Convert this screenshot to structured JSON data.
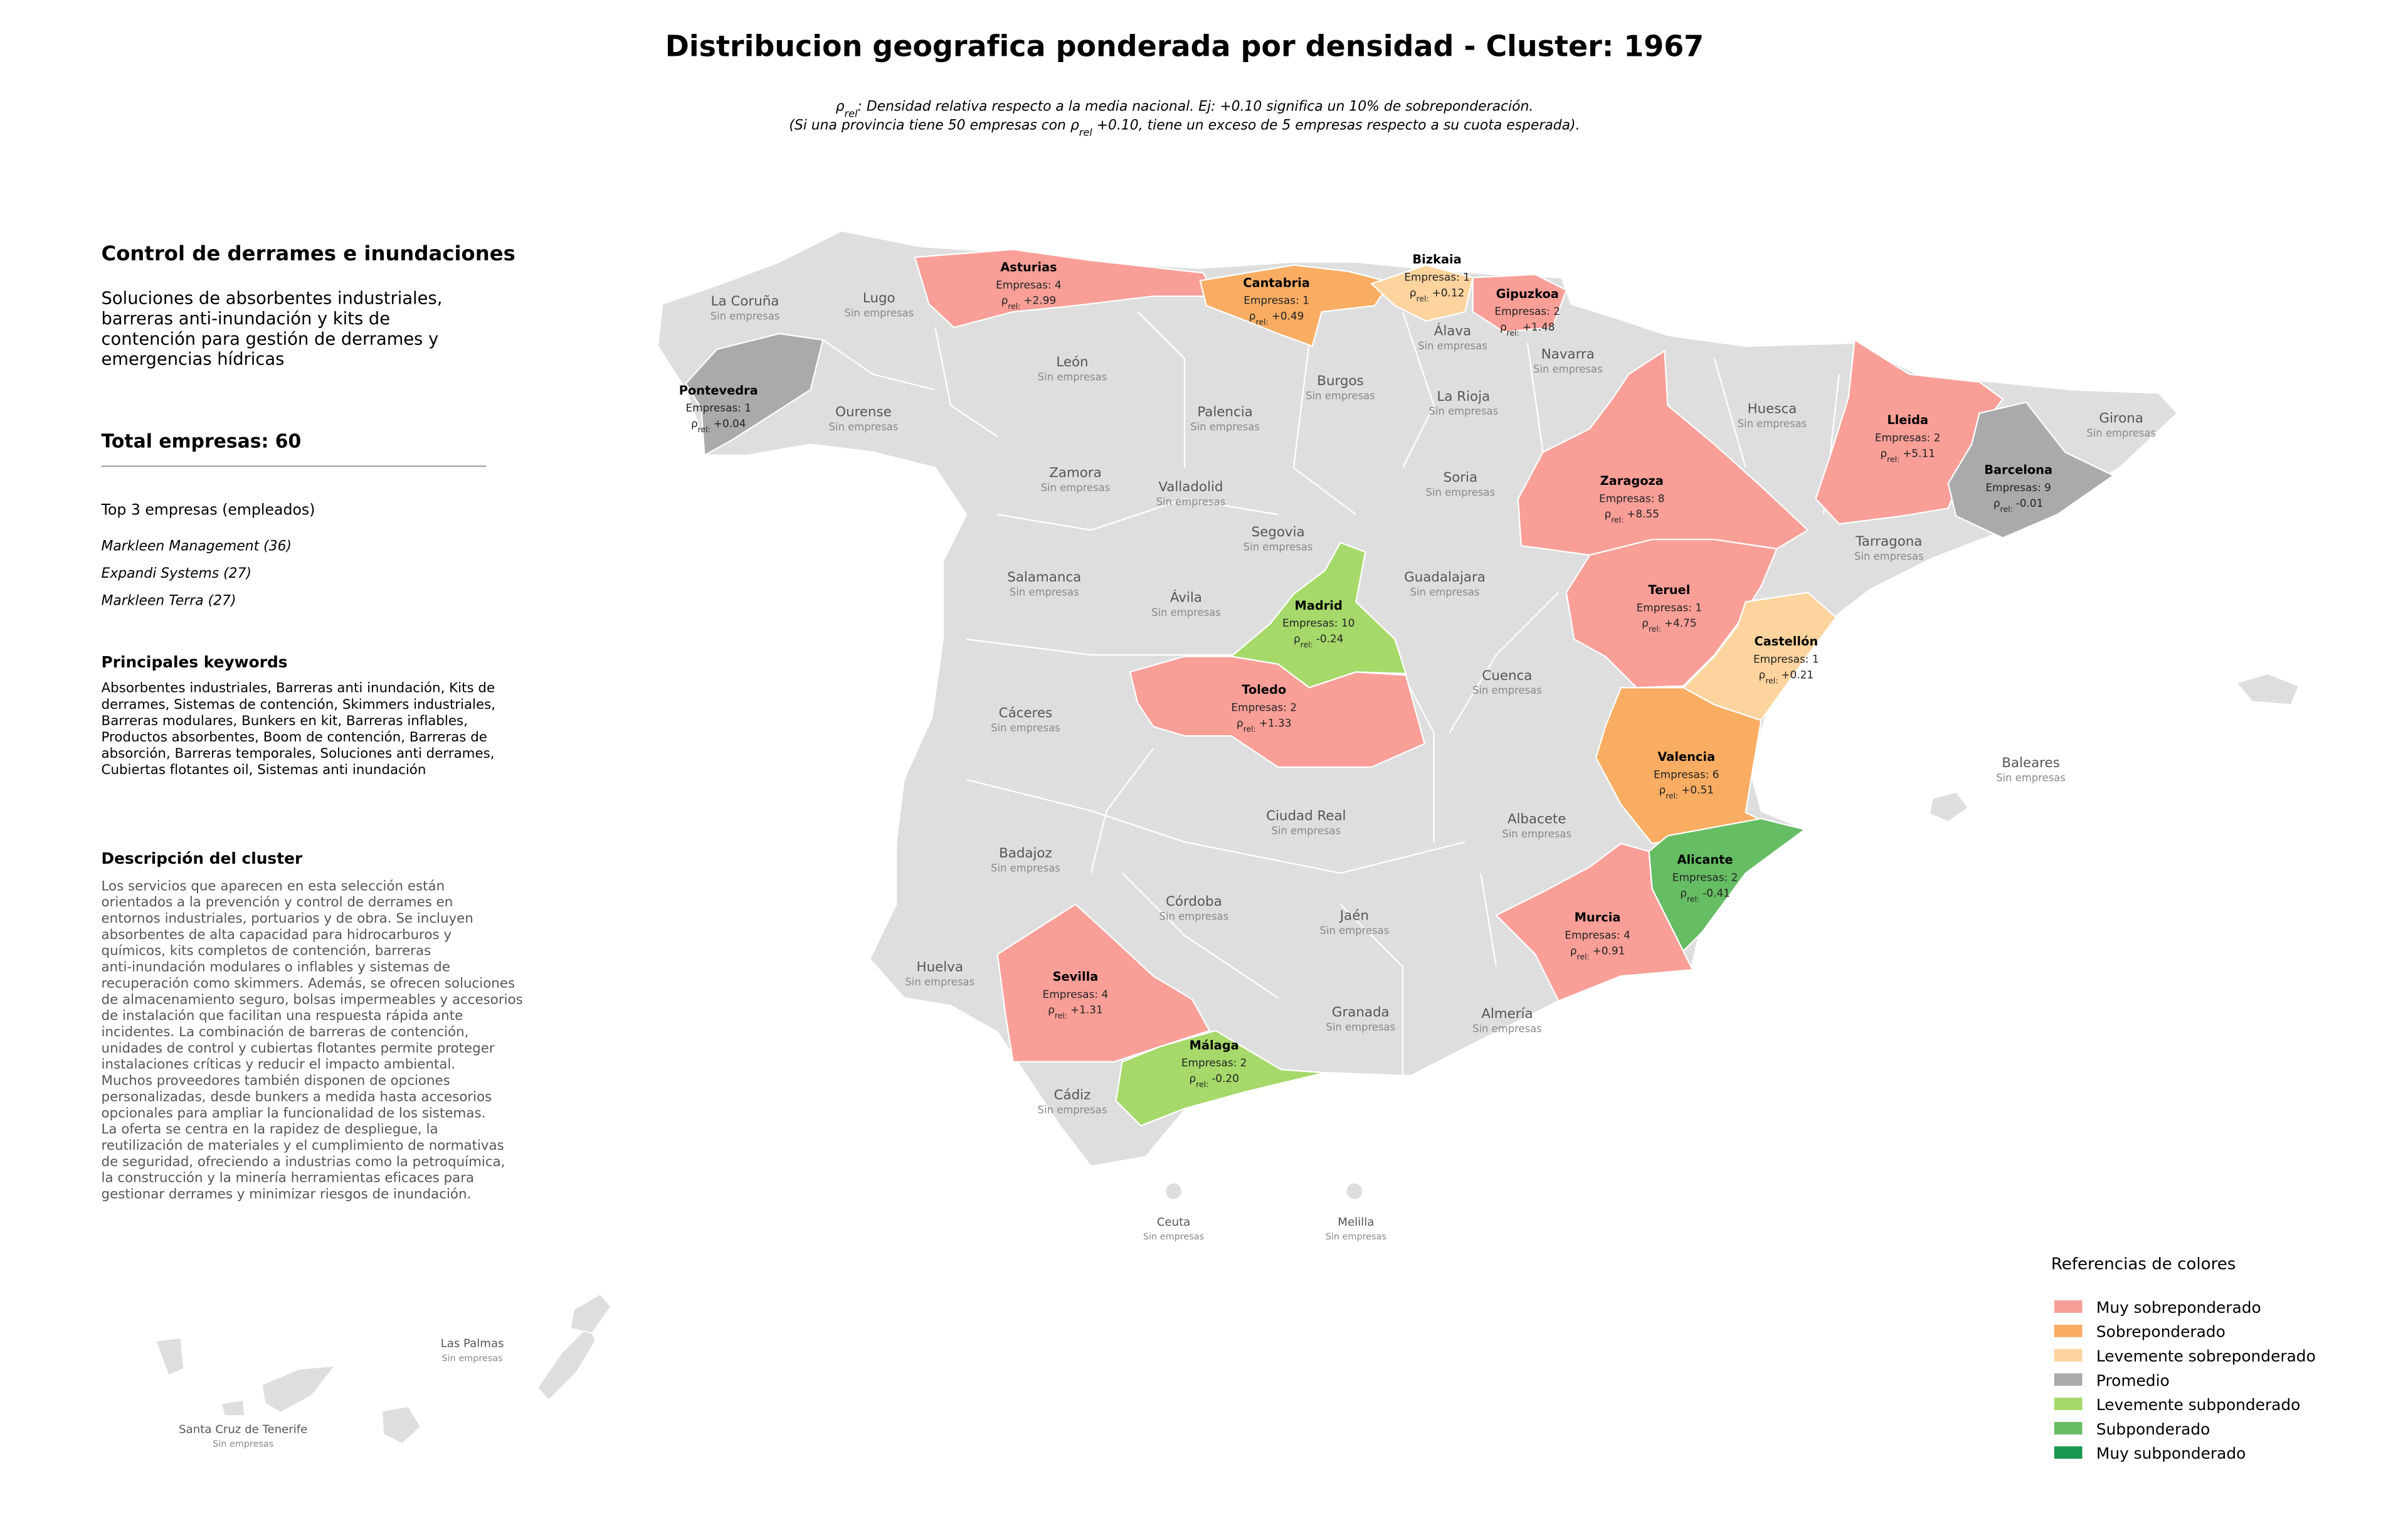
{
  "title": "Distribucion geografica ponderada por densidad - Cluster: 1967",
  "subtitle": [
    [
      {
        "text": "ρ"
      },
      {
        "text": "rel",
        "sub": true
      },
      {
        "text": ": Densidad relativa respecto a la media nacional. Ej: +0.10 significa un 10% de sobreponderación."
      }
    ],
    [
      {
        "text": "(Si una provincia tiene 50 empresas con "
      },
      {
        "text": "ρ"
      },
      {
        "text": "rel",
        "sub": true
      },
      {
        "text": " +0.10, tiene un exceso de 5 empresas respecto a su cuota esperada)."
      }
    ]
  ],
  "sidebar": {
    "heading": "Control de derrames e inundaciones",
    "description": [
      "Soluciones de absorbentes industriales,",
      "barreras anti-inundación y kits de",
      "contención para gestión de derrames y",
      "emergencias hídricas"
    ],
    "total": "Total empresas: 60",
    "top_heading": "Top 3 empresas (empleados)",
    "top": [
      "Markleen Management (36)",
      "Expandi Systems (27)",
      "Markleen Terra (27)"
    ],
    "keywords_heading": "Principales keywords",
    "keywords": [
      "Absorbentes industriales, Barreras anti inundación, Kits de",
      "derrames, Sistemas de contención, Skimmers industriales,",
      "Barreras modulares, Bunkers en kit, Barreras inflables,",
      "Productos absorbentes, Boom de contención, Barreras de",
      "absorción, Barreras temporales, Soluciones anti derrames,",
      "Cubiertas flotantes oil, Sistemas anti inundación"
    ],
    "cluster_heading": "Descripción del cluster",
    "cluster_text": [
      "Los servicios que aparecen en esta selección están",
      "orientados a la prevención y control de derrames en",
      "entornos industriales, portuarios y de obra. Se incluyen",
      "absorbentes de alta capacidad para hidrocarburos y",
      "químicos, kits completos de contención, barreras",
      "anti-inundación modulares o inflables y sistemas de",
      "recuperación como skimmers. Además, se ofrecen soluciones",
      "de almacenamiento seguro, bolsas impermeables y accesorios",
      "de instalación que facilitan una respuesta rápida ante",
      "incidentes. La combinación de barreras de contención,",
      "unidades de control y cubiertas flotantes permite proteger",
      "instalaciones críticas y reducir el impacto ambiental.",
      "Muchos proveedores también disponen de opciones",
      "personalizadas, desde bunkers a medida hasta accesorios",
      "opcionales para ampliar la funcionalidad de los sistemas.",
      "La oferta se centra en la rapidez de despliegue, la",
      "reutilización de materiales y el cumplimiento de normativas",
      "de seguridad, ofreciendo a industrias como la petroquímica,",
      "la construcción y la minería herramientas eficaces para",
      "gestionar derrames y minimizar riesgos de inundación."
    ]
  },
  "map": {
    "no_companies_label": "Sin empresas",
    "rho_symbol": "ρ",
    "rho_subscript": "rel:",
    "highlighted": [
      {
        "name": "Asturias",
        "count": "Empresas: 4",
        "rho": "+2.99",
        "color": "#f99f98"
      },
      {
        "name": "Cantabria",
        "count": "Empresas: 1",
        "rho": "+0.49",
        "color": "#f9ad63"
      },
      {
        "name": "Bizkaia",
        "count": "Empresas: 1",
        "rho": "+0.12",
        "color": "#fdd49e"
      },
      {
        "name": "Gipuzkoa",
        "count": "Empresas: 2",
        "rho": "+1.48",
        "color": "#f99f98"
      },
      {
        "name": "Pontevedra",
        "count": "Empresas: 1",
        "rho": "+0.04",
        "color": "#aaaaaa"
      },
      {
        "name": "Zaragoza",
        "count": "Empresas: 8",
        "rho": "+8.55",
        "color": "#f99f98"
      },
      {
        "name": "Lleida",
        "count": "Empresas: 2",
        "rho": "+5.11",
        "color": "#f99f98"
      },
      {
        "name": "Barcelona",
        "count": "Empresas: 9",
        "rho": "-0.01",
        "color": "#aaaaaa"
      },
      {
        "name": "Madrid",
        "count": "Empresas: 10",
        "rho": "-0.24",
        "color": "#a6d96a"
      },
      {
        "name": "Teruel",
        "count": "Empresas: 1",
        "rho": "+4.75",
        "color": "#f99f98"
      },
      {
        "name": "Castellón",
        "count": "Empresas: 1",
        "rho": "+0.21",
        "color": "#fdd49e"
      },
      {
        "name": "Toledo",
        "count": "Empresas: 2",
        "rho": "+1.33",
        "color": "#f99f98"
      },
      {
        "name": "Valencia",
        "count": "Empresas: 6",
        "rho": "+0.51",
        "color": "#f9ad63"
      },
      {
        "name": "Alicante",
        "count": "Empresas: 2",
        "rho": "-0.41",
        "color": "#66bd63"
      },
      {
        "name": "Murcia",
        "count": "Empresas: 4",
        "rho": "+0.91",
        "color": "#f99f98"
      },
      {
        "name": "Sevilla",
        "count": "Empresas: 4",
        "rho": "+1.31",
        "color": "#f99f98"
      },
      {
        "name": "Málaga",
        "count": "Empresas: 2",
        "rho": "-0.20",
        "color": "#a6d96a"
      }
    ],
    "plain": [
      "La Coruña",
      "Lugo",
      "León",
      "Ourense",
      "Palencia",
      "Burgos",
      "Álava",
      "Navarra",
      "La Rioja",
      "Huesca",
      "Girona",
      "Zamora",
      "Valladolid",
      "Soria",
      "Segovia",
      "Tarragona",
      "Salamanca",
      "Ávila",
      "Guadalajara",
      "Cáceres",
      "Cuenca",
      "Baleares",
      "Ciudad Real",
      "Albacete",
      "Badajoz",
      "Córdoba",
      "Jaén",
      "Huelva",
      "Granada",
      "Almería",
      "Cádiz",
      "Ceuta",
      "Melilla",
      "Las Palmas",
      "Santa Cruz de Tenerife"
    ]
  },
  "legend": {
    "title": "Referencias de colores",
    "items": [
      {
        "name": "Muy sobreponderado",
        "color": "#f99f98"
      },
      {
        "name": "Sobreponderado",
        "color": "#f9ad63"
      },
      {
        "name": "Levemente sobreponderado",
        "color": "#fdd49e"
      },
      {
        "name": "Promedio",
        "color": "#aaaaaa"
      },
      {
        "name": "Levemente subponderado",
        "color": "#a6d96a"
      },
      {
        "name": "Subponderado",
        "color": "#66bd63"
      },
      {
        "name": "Muy subponderado",
        "color": "#1a9850"
      }
    ]
  }
}
